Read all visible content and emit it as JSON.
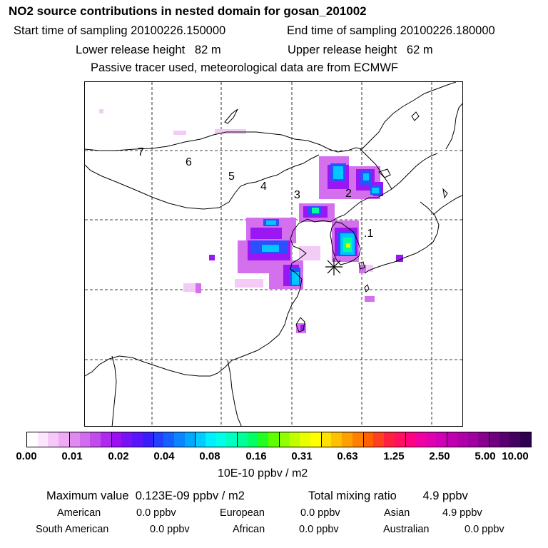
{
  "header": {
    "title": "NO2 source contributions in nested domain for gosan_201002",
    "start_label": "Start time of sampling 20100226.150000",
    "end_label": "End time of sampling 20100226.180000",
    "lower_label": "Lower release height   82 m",
    "upper_label": "Upper release height   62 m",
    "note": "Passive tracer used, meteorological data are from ECMWF"
  },
  "map": {
    "trajectory_labels": [
      ".1",
      "2",
      "3",
      "4",
      "5",
      "6",
      "7"
    ],
    "release_marker": "release-site-asterisk",
    "colors": {
      "coast": "#000000",
      "grid": "#000000"
    }
  },
  "legend": {
    "ticks": [
      "0.00",
      "0.01",
      "0.02",
      "0.04",
      "0.08",
      "0.16",
      "0.31",
      "0.63",
      "1.25",
      "2.50",
      "5.00",
      "10.00"
    ],
    "unit": "10E-10 ppbv / m2",
    "colors": [
      "#ffffff",
      "#fde6fd",
      "#f6c8f8",
      "#eeaaf4",
      "#e08af0",
      "#d26cee",
      "#c14cec",
      "#b02aee",
      "#9a10f2",
      "#7a10f6",
      "#5a16fa",
      "#3a1cfc",
      "#2440ff",
      "#1660ff",
      "#0a84ff",
      "#00a8ff",
      "#00ccff",
      "#00f0ff",
      "#00ffe8",
      "#00ffc0",
      "#00ff98",
      "#00ff60",
      "#20ff20",
      "#60ff00",
      "#90ff00",
      "#c0ff00",
      "#e8ff00",
      "#ffff00",
      "#ffe000",
      "#ffc000",
      "#ffa000",
      "#ff8000",
      "#ff6000",
      "#ff4020",
      "#ff2040",
      "#ff1060",
      "#ff0080",
      "#f000a0",
      "#e000b0",
      "#d000b8",
      "#c000b0",
      "#b000a8",
      "#a000a0",
      "#880090",
      "#700080",
      "#580070",
      "#440060",
      "#300050"
    ]
  },
  "stats": {
    "max_value": "Maximum value  0.123E-09 ppbv / m2",
    "total_mixing": "Total mixing ratio        4.9 ppbv",
    "american": "American",
    "american_value": "0.0 ppbv",
    "european": "European",
    "european_value": "0.0 ppbv",
    "asian": "Asian",
    "asian_value": "4.9 ppbv",
    "south_american": "South American",
    "south_american_value": "0.0 ppbv",
    "african": "African",
    "african_value": "0.0 ppbv",
    "australian": "Australian",
    "australian_value": "0.0 ppbv"
  }
}
